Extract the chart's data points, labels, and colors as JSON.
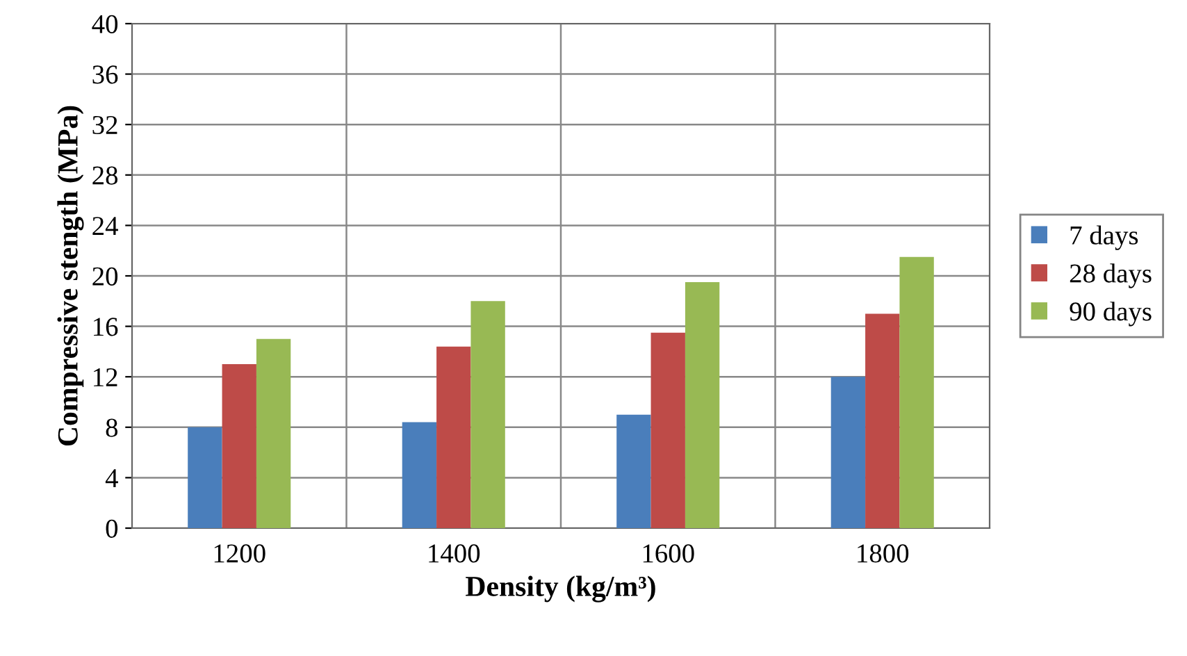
{
  "chart_data": {
    "type": "bar",
    "xlabel": "Density (kg/m³)",
    "ylabel": "Compressive stength (MPa)",
    "categories": [
      "1200",
      "1400",
      "1600",
      "1800"
    ],
    "series": [
      {
        "name": "7 days",
        "color": "#4a7ebb",
        "values": [
          8,
          8.4,
          9,
          12
        ]
      },
      {
        "name": "28 days",
        "color": "#be4b48",
        "values": [
          13,
          14.4,
          15.5,
          17
        ]
      },
      {
        "name": "90 days",
        "color": "#98b954",
        "values": [
          15,
          18,
          19.5,
          21.5
        ]
      }
    ],
    "ylim": [
      0,
      40
    ],
    "yticks": [
      0,
      4,
      8,
      12,
      16,
      20,
      24,
      28,
      32,
      36,
      40
    ],
    "grid": true,
    "legend": "right"
  }
}
